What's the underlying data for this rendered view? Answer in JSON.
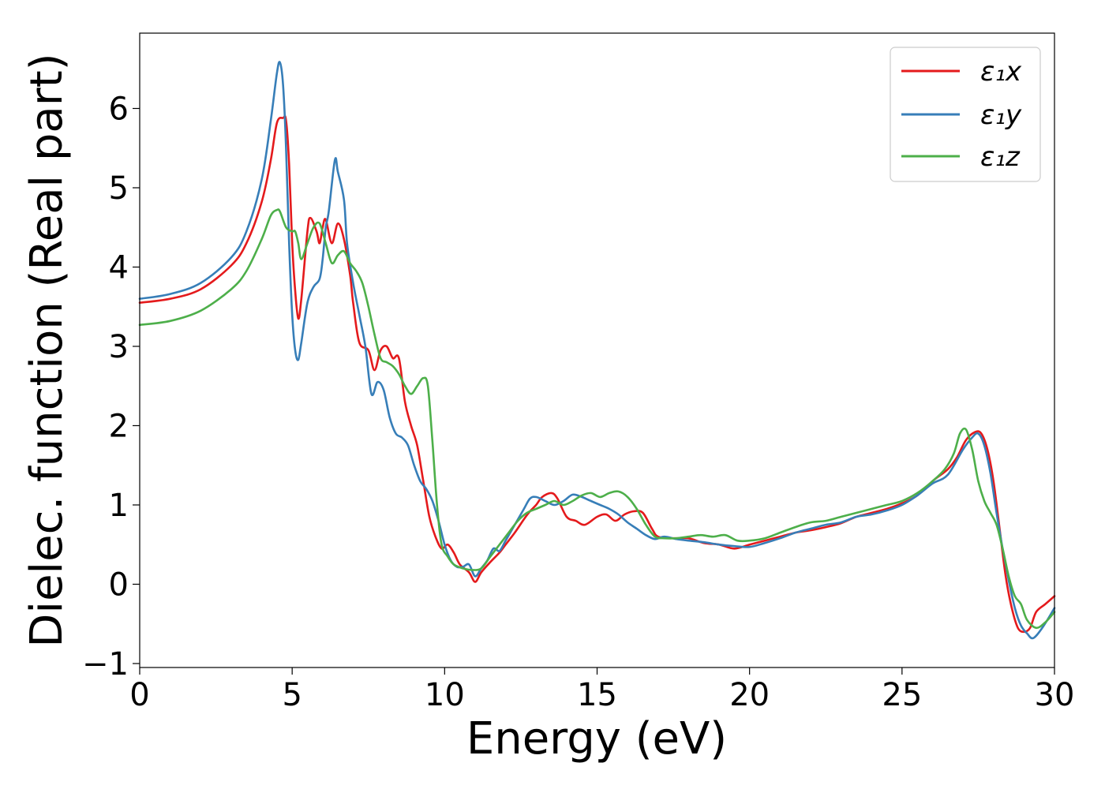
{
  "chart_data": {
    "type": "line",
    "title": "",
    "xlabel": "Energy (eV)",
    "ylabel": "Dielec. function (Real part)",
    "xlim": [
      0,
      30
    ],
    "ylim": [
      -1.05,
      6.95
    ],
    "xticks": [
      0,
      5,
      10,
      15,
      20,
      25,
      30
    ],
    "xtick_labels": [
      "0",
      "5",
      "10",
      "15",
      "20",
      "25",
      "30"
    ],
    "yticks": [
      -1,
      0,
      1,
      2,
      3,
      4,
      5,
      6
    ],
    "ytick_labels": [
      "−1",
      "0",
      "1",
      "2",
      "3",
      "4",
      "5",
      "6"
    ],
    "grid": false,
    "legend_position": "top-right",
    "series": [
      {
        "name": "ε₁x",
        "color": "#e41a1c",
        "x": [
          0,
          1,
          2,
          3,
          3.5,
          4,
          4.3,
          4.5,
          4.7,
          4.8,
          4.9,
          5.0,
          5.1,
          5.2,
          5.3,
          5.5,
          5.6,
          5.8,
          5.9,
          6.0,
          6.1,
          6.3,
          6.5,
          6.7,
          6.9,
          7.0,
          7.2,
          7.5,
          7.7,
          7.9,
          8.1,
          8.3,
          8.5,
          8.7,
          8.9,
          9.1,
          9.3,
          9.5,
          9.7,
          9.9,
          10.1,
          10.3,
          10.5,
          10.8,
          11.0,
          11.2,
          11.5,
          11.8,
          12.0,
          12.3,
          12.6,
          12.8,
          13.0,
          13.2,
          13.5,
          13.7,
          14.0,
          14.3,
          14.6,
          15.0,
          15.3,
          15.6,
          15.9,
          16.2,
          16.5,
          16.8,
          17.0,
          17.5,
          18.0,
          18.5,
          19.0,
          19.5,
          20.0,
          20.5,
          21.0,
          21.5,
          22.0,
          22.5,
          23.0,
          23.5,
          24.0,
          24.5,
          25.0,
          25.5,
          26.0,
          26.5,
          26.8,
          27.1,
          27.4,
          27.6,
          27.8,
          28.0,
          28.2,
          28.4,
          28.6,
          28.8,
          29.0,
          29.2,
          29.4,
          29.7,
          30.0
        ],
        "y": [
          3.55,
          3.6,
          3.72,
          4.02,
          4.3,
          4.82,
          5.35,
          5.82,
          5.88,
          5.85,
          5.3,
          4.3,
          3.7,
          3.35,
          3.6,
          4.45,
          4.62,
          4.45,
          4.3,
          4.5,
          4.6,
          4.3,
          4.55,
          4.35,
          3.9,
          3.55,
          3.05,
          2.95,
          2.7,
          2.95,
          3.0,
          2.85,
          2.85,
          2.3,
          2.0,
          1.75,
          1.3,
          0.85,
          0.6,
          0.45,
          0.5,
          0.4,
          0.25,
          0.15,
          0.03,
          0.15,
          0.28,
          0.4,
          0.5,
          0.65,
          0.82,
          0.92,
          1.0,
          1.1,
          1.15,
          1.08,
          0.85,
          0.8,
          0.75,
          0.85,
          0.88,
          0.8,
          0.88,
          0.92,
          0.9,
          0.7,
          0.6,
          0.58,
          0.58,
          0.52,
          0.5,
          0.45,
          0.5,
          0.55,
          0.6,
          0.65,
          0.68,
          0.72,
          0.77,
          0.85,
          0.9,
          0.95,
          1.02,
          1.12,
          1.3,
          1.45,
          1.6,
          1.82,
          1.92,
          1.9,
          1.7,
          1.3,
          0.7,
          0.1,
          -0.3,
          -0.55,
          -0.6,
          -0.55,
          -0.35,
          -0.25,
          -0.15
        ]
      },
      {
        "name": "ε₁y",
        "color": "#377eb8",
        "x": [
          0,
          1,
          2,
          3,
          3.5,
          4,
          4.3,
          4.5,
          4.6,
          4.7,
          4.8,
          4.9,
          5.0,
          5.1,
          5.2,
          5.3,
          5.5,
          5.7,
          5.9,
          6.0,
          6.1,
          6.2,
          6.4,
          6.5,
          6.7,
          6.8,
          7.0,
          7.2,
          7.4,
          7.6,
          7.8,
          8.0,
          8.2,
          8.4,
          8.6,
          8.8,
          9.0,
          9.2,
          9.4,
          9.6,
          9.8,
          10.0,
          10.2,
          10.4,
          10.6,
          10.8,
          11.0,
          11.2,
          11.4,
          11.6,
          11.8,
          12.0,
          12.3,
          12.6,
          12.8,
          13.0,
          13.3,
          13.6,
          13.9,
          14.2,
          14.5,
          14.8,
          15.1,
          15.4,
          15.7,
          16.0,
          16.3,
          16.6,
          16.9,
          17.2,
          17.6,
          18.0,
          18.5,
          19.0,
          19.5,
          20.0,
          20.5,
          21.0,
          21.5,
          22.0,
          22.5,
          23.0,
          23.5,
          24.0,
          24.5,
          25.0,
          25.5,
          26.0,
          26.5,
          27.0,
          27.3,
          27.5,
          27.7,
          27.9,
          28.1,
          28.3,
          28.5,
          28.7,
          28.9,
          29.1,
          29.3,
          29.6,
          30.0
        ],
        "y": [
          3.6,
          3.66,
          3.8,
          4.12,
          4.45,
          5.1,
          5.85,
          6.45,
          6.58,
          6.3,
          5.5,
          4.3,
          3.4,
          2.95,
          2.83,
          3.05,
          3.55,
          3.75,
          3.85,
          4.1,
          4.5,
          4.7,
          5.35,
          5.2,
          4.85,
          4.3,
          3.8,
          3.4,
          3.0,
          2.4,
          2.55,
          2.45,
          2.1,
          1.9,
          1.85,
          1.75,
          1.5,
          1.3,
          1.2,
          1.05,
          0.8,
          0.5,
          0.3,
          0.22,
          0.22,
          0.25,
          0.1,
          0.2,
          0.3,
          0.45,
          0.42,
          0.55,
          0.75,
          0.95,
          1.08,
          1.1,
          1.05,
          1.0,
          1.05,
          1.13,
          1.1,
          1.05,
          1.0,
          0.95,
          0.88,
          0.78,
          0.7,
          0.62,
          0.57,
          0.6,
          0.57,
          0.55,
          0.53,
          0.5,
          0.48,
          0.47,
          0.52,
          0.58,
          0.65,
          0.7,
          0.75,
          0.78,
          0.85,
          0.88,
          0.93,
          1.0,
          1.12,
          1.27,
          1.38,
          1.7,
          1.85,
          1.9,
          1.75,
          1.4,
          0.9,
          0.45,
          0.05,
          -0.3,
          -0.52,
          -0.62,
          -0.68,
          -0.55,
          -0.3
        ]
      },
      {
        "name": "ε₁z",
        "color": "#4daf4a",
        "x": [
          0,
          1,
          2,
          3,
          3.5,
          4,
          4.3,
          4.5,
          4.6,
          4.8,
          5.0,
          5.1,
          5.2,
          5.3,
          5.5,
          5.7,
          5.9,
          6.1,
          6.3,
          6.5,
          6.7,
          6.9,
          7.1,
          7.3,
          7.5,
          7.7,
          7.9,
          8.1,
          8.3,
          8.5,
          8.7,
          8.9,
          9.1,
          9.3,
          9.45,
          9.6,
          9.75,
          9.9,
          10.1,
          10.3,
          10.6,
          10.9,
          11.2,
          11.5,
          11.8,
          12.1,
          12.4,
          12.7,
          13.0,
          13.3,
          13.6,
          13.9,
          14.2,
          14.5,
          14.8,
          15.1,
          15.4,
          15.7,
          16.0,
          16.3,
          16.6,
          16.9,
          17.2,
          17.6,
          18.0,
          18.4,
          18.8,
          19.2,
          19.6,
          20.0,
          20.5,
          21.0,
          21.5,
          22.0,
          22.5,
          23.0,
          23.5,
          24.0,
          24.5,
          25.0,
          25.5,
          26.0,
          26.4,
          26.7,
          26.9,
          27.1,
          27.3,
          27.5,
          27.7,
          27.9,
          28.1,
          28.3,
          28.5,
          28.7,
          28.9,
          29.1,
          29.4,
          29.7,
          30.0
        ],
        "y": [
          3.27,
          3.32,
          3.45,
          3.72,
          3.95,
          4.35,
          4.65,
          4.72,
          4.7,
          4.5,
          4.45,
          4.45,
          4.3,
          4.1,
          4.3,
          4.5,
          4.55,
          4.3,
          4.05,
          4.15,
          4.2,
          4.05,
          3.95,
          3.8,
          3.5,
          3.15,
          2.85,
          2.8,
          2.75,
          2.65,
          2.5,
          2.4,
          2.5,
          2.6,
          2.5,
          1.8,
          1.0,
          0.5,
          0.35,
          0.25,
          0.2,
          0.18,
          0.2,
          0.35,
          0.5,
          0.65,
          0.8,
          0.9,
          0.95,
          1.0,
          1.05,
          1.0,
          1.05,
          1.12,
          1.15,
          1.1,
          1.15,
          1.17,
          1.1,
          0.95,
          0.75,
          0.6,
          0.58,
          0.58,
          0.6,
          0.62,
          0.6,
          0.62,
          0.55,
          0.55,
          0.58,
          0.65,
          0.72,
          0.78,
          0.8,
          0.85,
          0.9,
          0.95,
          1.0,
          1.05,
          1.15,
          1.3,
          1.45,
          1.65,
          1.9,
          1.95,
          1.7,
          1.3,
          1.05,
          0.9,
          0.75,
          0.45,
          0.1,
          -0.15,
          -0.25,
          -0.45,
          -0.55,
          -0.48,
          -0.35
        ]
      }
    ]
  }
}
